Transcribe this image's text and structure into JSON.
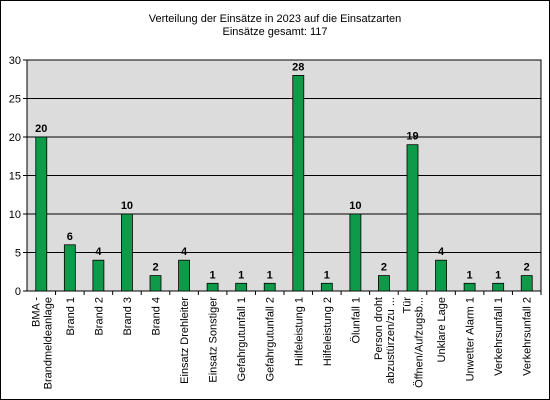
{
  "chart_data": {
    "type": "bar",
    "title": "Verteilung der Einsätze in 2023 auf die Einsatzarten",
    "subtitle": "Einsätze gesamt: 117",
    "categories": [
      [
        "BMA -",
        "Brandmeldeanlage"
      ],
      [
        "Brand 1"
      ],
      [
        "Brand 2"
      ],
      [
        "Brand 3"
      ],
      [
        "Brand 4"
      ],
      [
        "Einsatz Drehleiter"
      ],
      [
        "Einsatz Sonstiger"
      ],
      [
        "Gefahrgutunfall 1"
      ],
      [
        "Gefahrgutunfall 2"
      ],
      [
        "Hilfeleistung 1"
      ],
      [
        "Hilfeleistung 2"
      ],
      [
        "Ölunfall 1"
      ],
      [
        "Person droht",
        "abzustürzen/zu ..."
      ],
      [
        "Tür",
        "Öffnen/Aufzugsb..."
      ],
      [
        "Unklare Lage"
      ],
      [
        "Unwetter Alarm 1"
      ],
      [
        "Verkehrsunfall 1"
      ],
      [
        "Verkehrsunfall 2"
      ]
    ],
    "values": [
      20,
      6,
      4,
      10,
      2,
      4,
      1,
      1,
      1,
      28,
      1,
      10,
      2,
      19,
      4,
      1,
      1,
      2
    ],
    "y_ticks": [
      "0",
      "5",
      "10",
      "15",
      "20",
      "25",
      "30"
    ],
    "ylim": [
      0,
      30
    ],
    "grid": true,
    "legend": "none",
    "colors": {
      "bar": "#0f9a4a",
      "bar_edge": "#000000",
      "plot_bg": "#dcdcdc",
      "grid": "#000000"
    }
  }
}
